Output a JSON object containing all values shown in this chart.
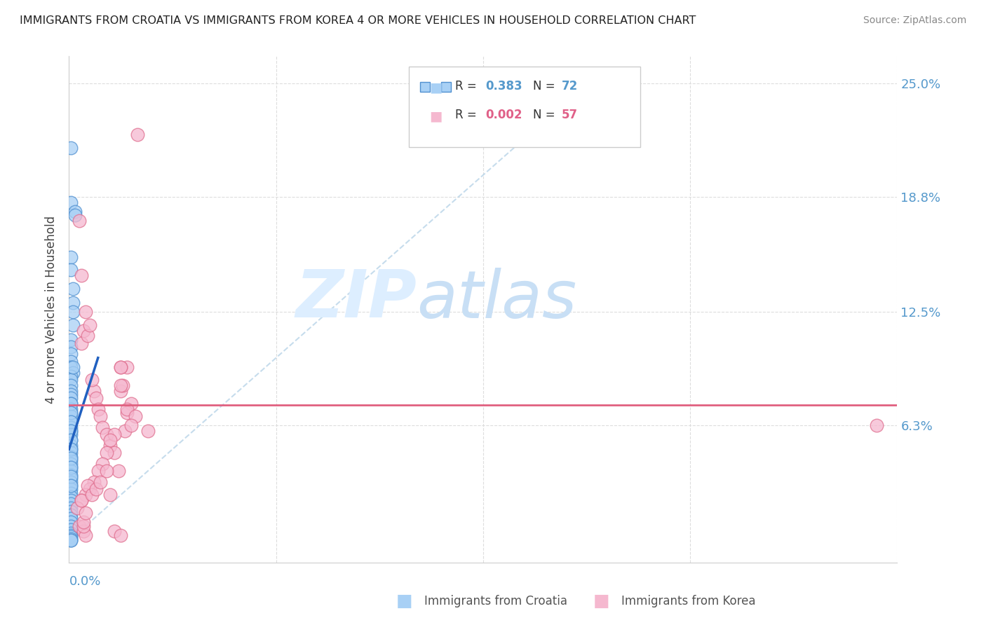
{
  "title": "IMMIGRANTS FROM CROATIA VS IMMIGRANTS FROM KOREA 4 OR MORE VEHICLES IN HOUSEHOLD CORRELATION CHART",
  "source": "Source: ZipAtlas.com",
  "ylabel": "4 or more Vehicles in Household",
  "right_yticklabels": [
    "6.3%",
    "12.5%",
    "18.8%",
    "25.0%"
  ],
  "right_ytick_vals": [
    0.063,
    0.125,
    0.188,
    0.25
  ],
  "xlim": [
    0.0,
    0.4
  ],
  "ylim": [
    -0.01,
    0.265
  ],
  "croatia_R": 0.383,
  "croatia_N": 72,
  "korea_R": 0.002,
  "korea_N": 57,
  "croatia_color": "#a8d0f5",
  "korea_color": "#f5b8cf",
  "croatia_edge_color": "#5090d0",
  "korea_edge_color": "#e07090",
  "croatia_line_color": "#2060c0",
  "korea_line_color": "#e06080",
  "ref_line_color": "#b8d4e8",
  "grid_color": "#dddddd",
  "watermark_color": "#ddeeff",
  "tick_label_color": "#5599cc",
  "title_color": "#222222",
  "source_color": "#888888",
  "legend_label_color": "#333333",
  "bottom_legend_color": "#555555",
  "croatia_x": [
    0.001,
    0.001,
    0.003,
    0.003,
    0.001,
    0.001,
    0.002,
    0.002,
    0.002,
    0.002,
    0.001,
    0.001,
    0.001,
    0.001,
    0.001,
    0.002,
    0.001,
    0.001,
    0.001,
    0.001,
    0.001,
    0.001,
    0.001,
    0.001,
    0.001,
    0.001,
    0.001,
    0.001,
    0.001,
    0.001,
    0.001,
    0.001,
    0.001,
    0.001,
    0.001,
    0.001,
    0.001,
    0.001,
    0.001,
    0.001,
    0.001,
    0.001,
    0.001,
    0.001,
    0.001,
    0.001,
    0.001,
    0.001,
    0.001,
    0.001,
    0.001,
    0.001,
    0.001,
    0.001,
    0.001,
    0.001,
    0.001,
    0.001,
    0.001,
    0.001,
    0.001,
    0.001,
    0.001,
    0.001,
    0.001,
    0.001,
    0.001,
    0.001,
    0.001,
    0.001,
    0.001,
    0.002
  ],
  "croatia_y": [
    0.215,
    0.185,
    0.18,
    0.178,
    0.155,
    0.148,
    0.138,
    0.13,
    0.125,
    0.118,
    0.11,
    0.106,
    0.102,
    0.098,
    0.095,
    0.092,
    0.09,
    0.088,
    0.085,
    0.082,
    0.08,
    0.078,
    0.075,
    0.072,
    0.07,
    0.068,
    0.065,
    0.062,
    0.06,
    0.058,
    0.055,
    0.052,
    0.05,
    0.048,
    0.046,
    0.044,
    0.042,
    0.04,
    0.038,
    0.036,
    0.034,
    0.032,
    0.03,
    0.028,
    0.026,
    0.024,
    0.022,
    0.02,
    0.018,
    0.016,
    0.014,
    0.012,
    0.01,
    0.008,
    0.006,
    0.004,
    0.003,
    0.002,
    0.001,
    0.0,
    0.0,
    0.075,
    0.07,
    0.065,
    0.06,
    0.055,
    0.05,
    0.045,
    0.04,
    0.035,
    0.03,
    0.095
  ],
  "korea_x": [
    0.033,
    0.005,
    0.006,
    0.008,
    0.007,
    0.006,
    0.009,
    0.01,
    0.012,
    0.011,
    0.013,
    0.014,
    0.015,
    0.016,
    0.018,
    0.02,
    0.022,
    0.025,
    0.024,
    0.028,
    0.026,
    0.03,
    0.028,
    0.027,
    0.025,
    0.022,
    0.025,
    0.028,
    0.032,
    0.038,
    0.39,
    0.025,
    0.02,
    0.018,
    0.016,
    0.014,
    0.012,
    0.01,
    0.008,
    0.006,
    0.004,
    0.005,
    0.007,
    0.008,
    0.006,
    0.007,
    0.007,
    0.008,
    0.009,
    0.011,
    0.013,
    0.015,
    0.018,
    0.02,
    0.022,
    0.025,
    0.03
  ],
  "korea_y": [
    0.222,
    0.175,
    0.145,
    0.125,
    0.115,
    0.108,
    0.112,
    0.118,
    0.082,
    0.088,
    0.078,
    0.072,
    0.068,
    0.062,
    0.058,
    0.052,
    0.048,
    0.082,
    0.038,
    0.095,
    0.085,
    0.075,
    0.07,
    0.06,
    0.085,
    0.058,
    0.095,
    0.072,
    0.068,
    0.06,
    0.063,
    0.095,
    0.055,
    0.048,
    0.042,
    0.038,
    0.032,
    0.028,
    0.025,
    0.022,
    0.018,
    0.008,
    0.005,
    0.003,
    0.022,
    0.008,
    0.01,
    0.015,
    0.03,
    0.025,
    0.028,
    0.032,
    0.038,
    0.025,
    0.005,
    0.003,
    0.063
  ],
  "croatia_trend_x": [
    0.0,
    0.014
  ],
  "croatia_trend_y": [
    0.05,
    0.1
  ],
  "korea_trend_y_val": 0.074
}
